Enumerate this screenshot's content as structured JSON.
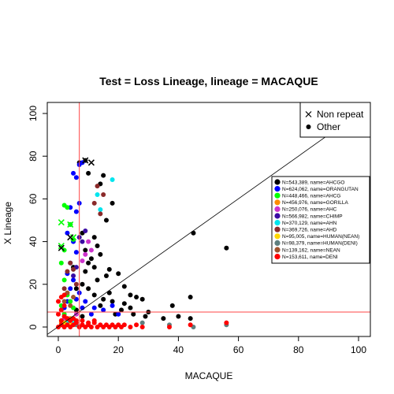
{
  "chart_data": {
    "type": "scatter",
    "title": "Test = Loss Lineage, lineage = MACAQUE",
    "xlabel": "MACAQUE",
    "ylabel": "X Lineage",
    "xlim": [
      0,
      100
    ],
    "ylim": [
      0,
      100
    ],
    "x_ticks": [
      0,
      20,
      40,
      60,
      80,
      100
    ],
    "y_ticks": [
      0,
      20,
      40,
      60,
      80,
      100
    ],
    "grid": false,
    "reference_lines": {
      "diagonal": "y = x",
      "vertical_x": 7,
      "horizontal_y": 7,
      "threshold_color": "#ff4444"
    },
    "marker_legend": {
      "placement": "top-right",
      "items": [
        {
          "label": "Non repeat",
          "symbol": "x"
        },
        {
          "label": "Other",
          "symbol": "dot"
        }
      ]
    },
    "series_legend": {
      "placement": "right",
      "items": [
        {
          "label": "N=543,389, name=AHCGO",
          "color": "#000000"
        },
        {
          "label": "N=624,062, name=ORANGUTAN",
          "color": "#0000ff"
        },
        {
          "label": "N=448,466, name=AHCG",
          "color": "#00ff00"
        },
        {
          "label": "N=456,976, name=GORILLA",
          "color": "#ff8c00"
        },
        {
          "label": "N=250,076, name=AHC",
          "color": "#cc33cc"
        },
        {
          "label": "N=566,982, name=CHIMP",
          "color": "#3a0ca3"
        },
        {
          "label": "N=370,129, name=AHN",
          "color": "#00e5ee"
        },
        {
          "label": "N=369,726, name=AHD",
          "color": "#8b2a2a"
        },
        {
          "label": "N=95,005, name=HUMAN(NEAN)",
          "color": "#ffd700"
        },
        {
          "label": "N=98,379, name=HUMAN(DENI)",
          "color": "#5f7f7f"
        },
        {
          "label": "N=139,162, name=NEAN",
          "color": "#a0522d"
        },
        {
          "label": "N=153,611, name=DENI",
          "color": "#ff0000"
        }
      ]
    },
    "series": [
      {
        "name": "AHCGO",
        "color": "#000000",
        "points": [
          [
            9,
            78
          ],
          [
            7,
            77
          ],
          [
            10,
            72
          ],
          [
            15,
            71
          ],
          [
            14,
            67
          ],
          [
            8,
            44
          ],
          [
            12,
            42
          ],
          [
            13,
            38
          ],
          [
            14,
            34
          ],
          [
            11,
            32
          ],
          [
            18,
            58
          ],
          [
            16,
            50
          ],
          [
            9,
            36
          ],
          [
            10,
            30
          ],
          [
            12,
            28
          ],
          [
            17,
            27
          ],
          [
            20,
            25
          ],
          [
            16,
            24
          ],
          [
            22,
            19
          ],
          [
            24,
            15
          ],
          [
            26,
            14
          ],
          [
            28,
            13
          ],
          [
            22,
            11
          ],
          [
            24,
            9
          ],
          [
            18,
            12
          ],
          [
            15,
            13
          ],
          [
            21,
            8
          ],
          [
            29,
            5
          ],
          [
            35,
            4
          ],
          [
            40,
            5
          ],
          [
            44,
            4
          ],
          [
            45,
            44
          ],
          [
            56,
            37
          ],
          [
            44,
            14
          ],
          [
            38,
            10
          ],
          [
            30,
            7
          ],
          [
            25,
            6
          ],
          [
            19,
            6
          ],
          [
            12,
            15
          ],
          [
            8,
            20
          ],
          [
            6,
            18
          ],
          [
            10,
            18
          ],
          [
            13,
            22
          ],
          [
            17,
            16
          ],
          [
            5,
            28
          ],
          [
            9,
            26
          ],
          [
            14,
            10
          ],
          [
            6,
            8
          ],
          [
            8,
            5
          ]
        ]
      },
      {
        "name": "ORANGUTAN",
        "color": "#0000ff",
        "points": [
          [
            7,
            76
          ],
          [
            8,
            77
          ],
          [
            5,
            72
          ],
          [
            6,
            70
          ],
          [
            7,
            58
          ],
          [
            6,
            54
          ],
          [
            4,
            48
          ],
          [
            3,
            44
          ],
          [
            5,
            40
          ],
          [
            6,
            35
          ],
          [
            4,
            30
          ],
          [
            3,
            25
          ],
          [
            5,
            22
          ],
          [
            4,
            18
          ],
          [
            7,
            16
          ],
          [
            6,
            13
          ],
          [
            9,
            12
          ],
          [
            12,
            9
          ],
          [
            15,
            8
          ],
          [
            18,
            10
          ],
          [
            20,
            6
          ],
          [
            3,
            12
          ],
          [
            2,
            9
          ],
          [
            8,
            9
          ],
          [
            11,
            6
          ],
          [
            4,
            56
          ]
        ]
      },
      {
        "name": "AHCG",
        "color": "#00ff00",
        "points": [
          [
            2,
            57
          ],
          [
            3,
            56
          ],
          [
            4,
            48
          ],
          [
            5,
            41
          ],
          [
            2,
            36
          ],
          [
            1,
            30
          ],
          [
            2,
            22
          ],
          [
            3,
            15
          ],
          [
            1,
            10
          ],
          [
            4,
            12
          ],
          [
            5,
            9
          ],
          [
            2,
            6
          ]
        ]
      },
      {
        "name": "GORILLA",
        "color": "#ff8c00",
        "points": [
          [
            1,
            2
          ],
          [
            3,
            3
          ],
          [
            5,
            1
          ],
          [
            2,
            5
          ],
          [
            4,
            4
          ]
        ]
      },
      {
        "name": "AHC",
        "color": "#cc33cc",
        "points": [
          [
            10,
            40
          ],
          [
            11,
            36
          ],
          [
            9,
            34
          ],
          [
            8,
            31
          ],
          [
            2,
            4
          ],
          [
            6,
            6
          ]
        ]
      },
      {
        "name": "CHIMP",
        "color": "#3a0ca3",
        "points": [
          [
            7,
            42
          ],
          [
            9,
            45
          ],
          [
            8,
            40
          ],
          [
            6,
            28
          ],
          [
            5,
            24
          ]
        ]
      },
      {
        "name": "AHN",
        "color": "#00e5ee",
        "points": [
          [
            18,
            69
          ],
          [
            13,
            62
          ],
          [
            14,
            55
          ],
          [
            5,
            3
          ],
          [
            3,
            2
          ]
        ]
      },
      {
        "name": "AHD",
        "color": "#8b2a2a",
        "points": [
          [
            13,
            66
          ],
          [
            15,
            62
          ],
          [
            12,
            58
          ],
          [
            14,
            53
          ],
          [
            4,
            30
          ],
          [
            5,
            27
          ],
          [
            3,
            26
          ],
          [
            6,
            20
          ],
          [
            2,
            18
          ]
        ]
      },
      {
        "name": "HUMAN(NEAN)",
        "color": "#ffd700",
        "points": [
          [
            1,
            1
          ],
          [
            2,
            2
          ],
          [
            4,
            1
          ]
        ]
      },
      {
        "name": "HUMAN(DENI)",
        "color": "#5f7f7f",
        "points": [
          [
            19,
            0
          ],
          [
            28,
            2
          ],
          [
            37,
            1
          ],
          [
            45,
            0
          ],
          [
            56,
            1
          ],
          [
            2,
            0
          ],
          [
            6,
            1
          ]
        ]
      },
      {
        "name": "NEAN",
        "color": "#a0522d",
        "points": [
          [
            3,
            16
          ],
          [
            5,
            14
          ],
          [
            2,
            12
          ],
          [
            4,
            10
          ],
          [
            1,
            8
          ]
        ]
      },
      {
        "name": "DENI",
        "color": "#ff0000",
        "points": [
          [
            0,
            0
          ],
          [
            1,
            1
          ],
          [
            2,
            0
          ],
          [
            3,
            1
          ],
          [
            4,
            0
          ],
          [
            5,
            1
          ],
          [
            6,
            2
          ],
          [
            7,
            0
          ],
          [
            8,
            1
          ],
          [
            9,
            0
          ],
          [
            10,
            1
          ],
          [
            11,
            0
          ],
          [
            12,
            2
          ],
          [
            13,
            0
          ],
          [
            14,
            1
          ],
          [
            15,
            0
          ],
          [
            16,
            1
          ],
          [
            17,
            0
          ],
          [
            18,
            1
          ],
          [
            19,
            0
          ],
          [
            20,
            1
          ],
          [
            21,
            0
          ],
          [
            22,
            1
          ],
          [
            24,
            0
          ],
          [
            26,
            1
          ],
          [
            28,
            0
          ],
          [
            37,
            0
          ],
          [
            44,
            1
          ],
          [
            56,
            2
          ],
          [
            1,
            3
          ],
          [
            2,
            5
          ],
          [
            3,
            4
          ],
          [
            0,
            6
          ],
          [
            1,
            8
          ],
          [
            2,
            10
          ],
          [
            0,
            12
          ],
          [
            1,
            14
          ],
          [
            2,
            15
          ],
          [
            4,
            3
          ],
          [
            5,
            4
          ],
          [
            6,
            3
          ],
          [
            8,
            3
          ],
          [
            10,
            2
          ],
          [
            12,
            3
          ]
        ]
      },
      {
        "name": "Non repeat markers",
        "marker": "x",
        "color": "#00ff00",
        "points": [
          [
            1,
            49
          ],
          [
            4,
            48
          ],
          [
            1,
            38
          ],
          [
            5,
            42
          ]
        ]
      },
      {
        "name": "Non repeat markers (black)",
        "marker": "x",
        "color": "#000000",
        "points": [
          [
            9,
            78
          ],
          [
            11,
            77
          ],
          [
            4,
            42
          ],
          [
            1,
            37
          ]
        ]
      }
    ]
  }
}
